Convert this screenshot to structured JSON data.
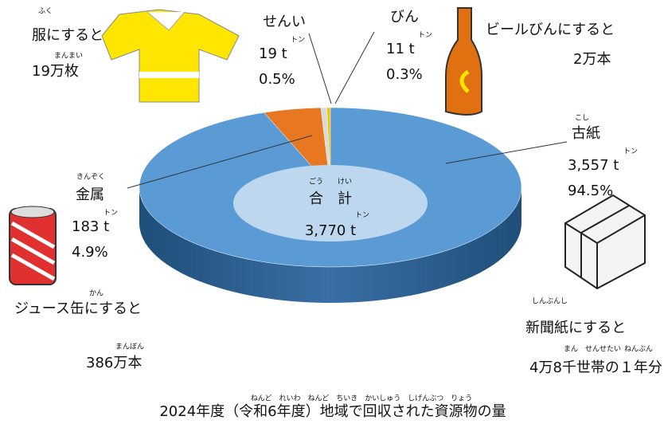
{
  "chart_data": {
    "type": "pie",
    "title": "2024年度（令和6年度）地域で回収された資源物の量",
    "title_ruby": "ねんど　れいわ　ねんど　ちいき　かいしゅう　しげんぶつ　りょう",
    "categories": [
      "古紙",
      "金属",
      "せんい",
      "びん"
    ],
    "values": [
      3557,
      183,
      19,
      11
    ],
    "value_labels": [
      "3,557 t",
      "183 t",
      "19 t",
      "11 t"
    ],
    "percents": [
      94.5,
      4.9,
      0.5,
      0.3
    ],
    "percent_labels": [
      "94.5%",
      "4.9%",
      "0.5%",
      "0.3%"
    ],
    "colors": [
      "#5b9bd5",
      "#e87722",
      "#d9d9d9",
      "#f2c200"
    ],
    "total": 3770,
    "total_label": "3,770 t",
    "total_name": "合　計",
    "total_ruby": "ごう　　けい",
    "ton_ruby": "トン",
    "annotations": [
      "ふく",
      "服にすると",
      "まんまい",
      "19万枚",
      "ビールびんにすると",
      "2万本",
      "こし",
      "きんぞく",
      "かん",
      "ジュース缶にすると",
      "まんぼん",
      "386万本",
      "しんぶんし",
      "新聞紙にすると",
      "まん　せんせたい",
      "ねんぶん",
      "4万8千世帯の１年分"
    ]
  }
}
